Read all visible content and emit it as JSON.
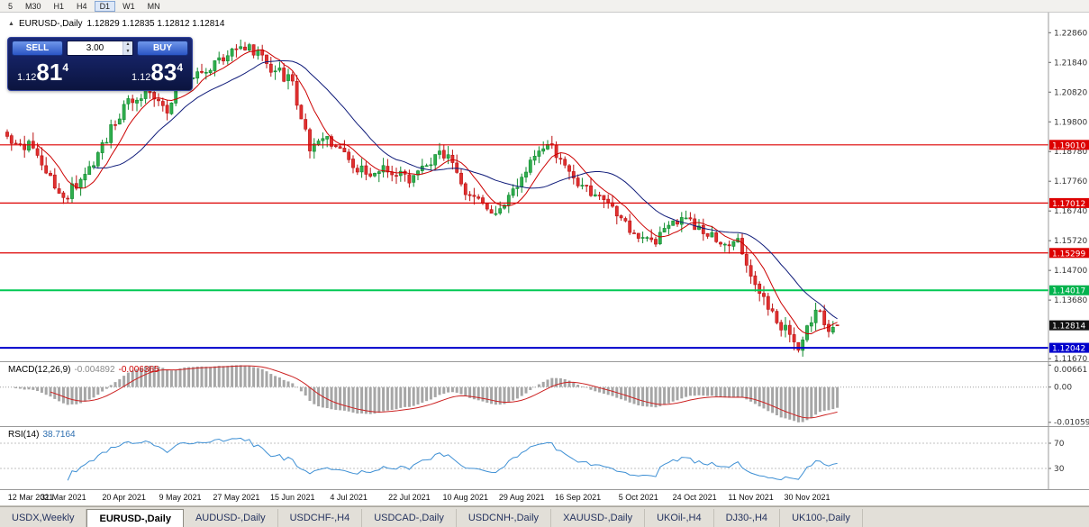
{
  "toolbar": {
    "timeframes": [
      {
        "label": "5",
        "active": false
      },
      {
        "label": "M30",
        "active": false
      },
      {
        "label": "H1",
        "active": false
      },
      {
        "label": "H4",
        "active": false
      },
      {
        "label": "D1",
        "active": true
      },
      {
        "label": "W1",
        "active": false
      },
      {
        "label": "MN",
        "active": false
      }
    ]
  },
  "chart": {
    "title": "EURUSD-,Daily",
    "ohlc": "1.12829 1.12835 1.12812 1.12814"
  },
  "trade_widget": {
    "sell_label": "SELL",
    "buy_label": "BUY",
    "volume": "3.00",
    "sell_price": {
      "small": "1.12",
      "big": "81",
      "sup": "4"
    },
    "buy_price": {
      "small": "1.12",
      "big": "83",
      "sup": "4"
    }
  },
  "price_axis": {
    "gray_labels": [
      "1.22860",
      "1.21840",
      "1.20820",
      "1.19800",
      "1.18780",
      "1.17760",
      "1.16740",
      "1.15720",
      "1.14700",
      "1.13680",
      "1.11670"
    ],
    "marked_labels": [
      {
        "text": "1.19010",
        "price": 1.1901,
        "color": "#dd0000"
      },
      {
        "text": "1.17012",
        "price": 1.17012,
        "color": "#dd0000"
      },
      {
        "text": "1.15299",
        "price": 1.15299,
        "color": "#dd0000"
      },
      {
        "text": "1.14017",
        "price": 1.14017,
        "color": "#00b34d"
      },
      {
        "text": "1.12814",
        "price": 1.12814,
        "color": "#111111"
      },
      {
        "text": "1.12042",
        "price": 1.12042,
        "color": "#0000cc"
      }
    ]
  },
  "macd": {
    "label": "MACD(12,26,9)",
    "main_value": "-0.004892",
    "signal_value": "-0.006365",
    "axis_labels": [
      {
        "text": "0.00661",
        "value": 0.00661
      },
      {
        "text": "0.00",
        "value": 0
      },
      {
        "text": "-0.010595",
        "value": -0.010595
      }
    ]
  },
  "rsi": {
    "label": "RSI(14)",
    "value": "38.7164",
    "levels": [
      {
        "text": "70",
        "value": 70
      },
      {
        "text": "30",
        "value": 30
      }
    ]
  },
  "date_axis": [
    "12 Mar 2021",
    "31 Mar 2021",
    "20 Apr 2021",
    "9 May 2021",
    "27 May 2021",
    "15 Jun 2021",
    "4 Jul 2021",
    "22 Jul 2021",
    "10 Aug 2021",
    "29 Aug 2021",
    "16 Sep 2021",
    "5 Oct 2021",
    "24 Oct 2021",
    "11 Nov 2021",
    "30 Nov 2021"
  ],
  "tabs": [
    {
      "label": "USDX,Weekly",
      "active": false
    },
    {
      "label": "EURUSD-,Daily",
      "active": true
    },
    {
      "label": "AUDUSD-,Daily",
      "active": false
    },
    {
      "label": "USDCHF-,H4",
      "active": false
    },
    {
      "label": "USDCAD-,Daily",
      "active": false
    },
    {
      "label": "USDCNH-,Daily",
      "active": false
    },
    {
      "label": "XAUUSD-,Daily",
      "active": false
    },
    {
      "label": "UKOil-,H4",
      "active": false
    },
    {
      "label": "DJ30-,H4",
      "active": false
    },
    {
      "label": "UK100-,Daily",
      "active": false
    }
  ],
  "chart_data": {
    "type": "candlestick",
    "symbol": "EURUSD-",
    "timeframe": "Daily",
    "last": {
      "open": 1.12829,
      "high": 1.12835,
      "low": 1.12812,
      "close": 1.12814
    },
    "ylim": [
      1.1155,
      1.2355
    ],
    "n_candles": 193,
    "x_tick_indices": [
      0,
      13,
      27,
      40,
      53,
      66,
      79,
      93,
      106,
      119,
      132,
      146,
      159,
      172,
      185
    ],
    "price_path_anchors": [
      [
        0,
        1.193
      ],
      [
        6,
        1.189
      ],
      [
        13,
        1.172
      ],
      [
        20,
        1.183
      ],
      [
        27,
        1.204
      ],
      [
        33,
        1.208
      ],
      [
        37,
        1.201
      ],
      [
        40,
        1.213
      ],
      [
        46,
        1.215
      ],
      [
        53,
        1.223
      ],
      [
        56,
        1.2245
      ],
      [
        60,
        1.218
      ],
      [
        66,
        1.212
      ],
      [
        68,
        1.199
      ],
      [
        70,
        1.188
      ],
      [
        74,
        1.193
      ],
      [
        79,
        1.185
      ],
      [
        83,
        1.18
      ],
      [
        87,
        1.183
      ],
      [
        93,
        1.177
      ],
      [
        97,
        1.183
      ],
      [
        100,
        1.188
      ],
      [
        103,
        1.184
      ],
      [
        106,
        1.173
      ],
      [
        110,
        1.17
      ],
      [
        113,
        1.1665
      ],
      [
        117,
        1.175
      ],
      [
        119,
        1.179
      ],
      [
        123,
        1.188
      ],
      [
        126,
        1.19
      ],
      [
        130,
        1.181
      ],
      [
        132,
        1.176
      ],
      [
        136,
        1.173
      ],
      [
        140,
        1.169
      ],
      [
        144,
        1.16
      ],
      [
        146,
        1.158
      ],
      [
        150,
        1.156
      ],
      [
        154,
        1.164
      ],
      [
        157,
        1.165
      ],
      [
        159,
        1.161
      ],
      [
        163,
        1.16
      ],
      [
        166,
        1.156
      ],
      [
        169,
        1.158
      ],
      [
        172,
        1.145
      ],
      [
        175,
        1.138
      ],
      [
        178,
        1.129
      ],
      [
        181,
        1.125
      ],
      [
        183,
        1.1196
      ],
      [
        185,
        1.128
      ],
      [
        188,
        1.133
      ],
      [
        190,
        1.126
      ],
      [
        192,
        1.12814
      ]
    ],
    "horizontal_lines": [
      {
        "price": 1.1901,
        "color": "#dd0000",
        "width": 1.2
      },
      {
        "price": 1.17012,
        "color": "#dd0000",
        "width": 1.2
      },
      {
        "price": 1.15299,
        "color": "#dd0000",
        "width": 1.2
      },
      {
        "price": 1.14017,
        "color": "#00c853",
        "width": 2
      },
      {
        "price": 1.12042,
        "color": "#0000cc",
        "width": 2
      }
    ],
    "moving_averages": [
      {
        "period": 8,
        "color": "#cc0000"
      },
      {
        "period": 21,
        "color": "#101c7a"
      }
    ],
    "candle_colors": {
      "up_fill": "#2fae4e",
      "up_stroke": "#0f8a2e",
      "down_fill": "#e03030",
      "down_stroke": "#bb1111"
    },
    "indicators": [
      {
        "name": "MACD",
        "params": [
          12,
          26,
          9
        ]
      },
      {
        "name": "RSI",
        "params": [
          14
        ]
      }
    ]
  }
}
